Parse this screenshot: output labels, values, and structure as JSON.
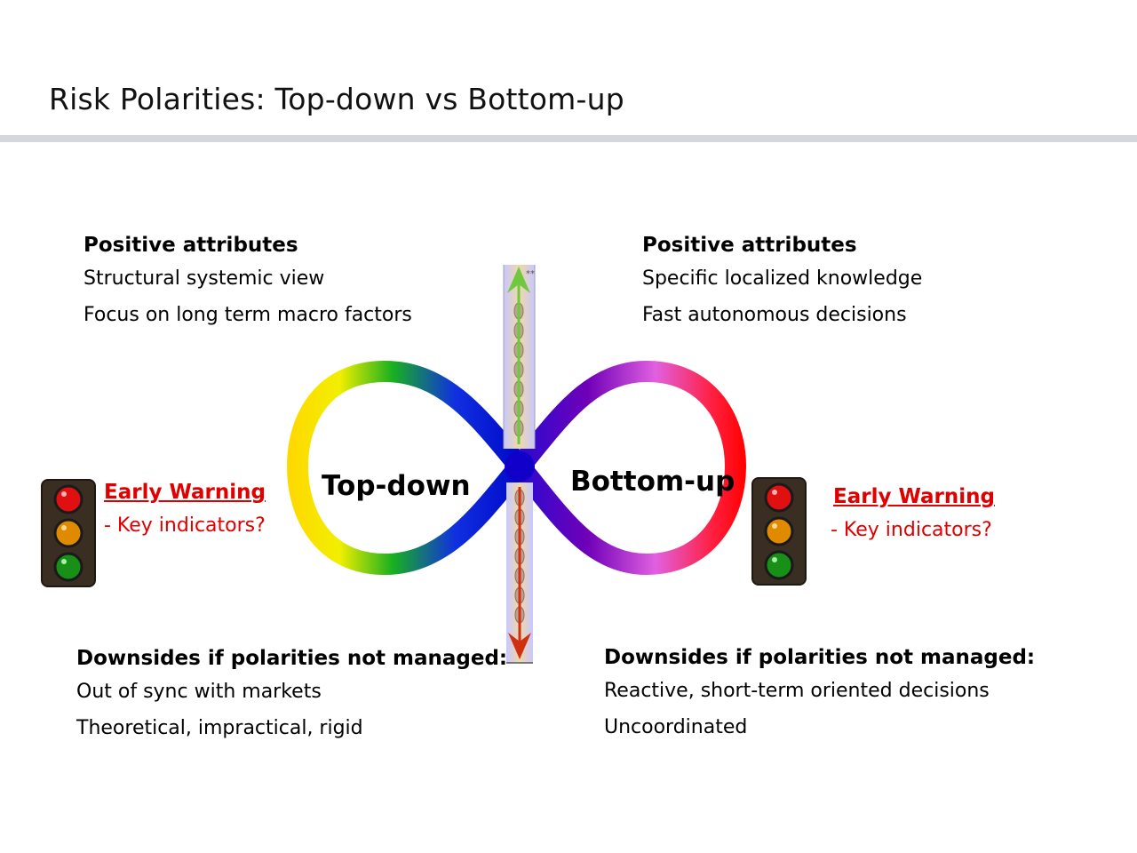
{
  "title": "Risk Polarities: Top-down vs Bottom-up",
  "loop": {
    "left_label": "Top-down",
    "right_label": "Bottom-up"
  },
  "left": {
    "positive": {
      "heading": "Positive attributes",
      "items": [
        "Structural systemic view",
        "Focus on long term macro factors"
      ]
    },
    "warning": {
      "heading": "Early Warning",
      "text": "- Key indicators?"
    },
    "downsides": {
      "heading": "Downsides if polarities not managed:",
      "items": [
        "Out of sync with markets",
        "Theoretical, impractical, rigid"
      ]
    }
  },
  "right": {
    "positive": {
      "heading": "Positive attributes",
      "items": [
        "Specific localized knowledge",
        "Fast autonomous decisions"
      ]
    },
    "warning": {
      "heading": "Early Warning",
      "text": "- Key indicators?"
    },
    "downsides": {
      "heading": "Downsides if polarities not managed:",
      "items": [
        "Reactive, short-term oriented decisions",
        "Uncoordinated"
      ]
    }
  },
  "arrow": {
    "marker": "**"
  },
  "colors": {
    "warning": "#e00000",
    "traffic_red": "#e01010",
    "traffic_amber": "#e08a00",
    "traffic_green": "#189018"
  },
  "icons": [
    "traffic-light-icon",
    "infinity-loop-icon",
    "up-arrow-icon",
    "down-arrow-icon"
  ]
}
